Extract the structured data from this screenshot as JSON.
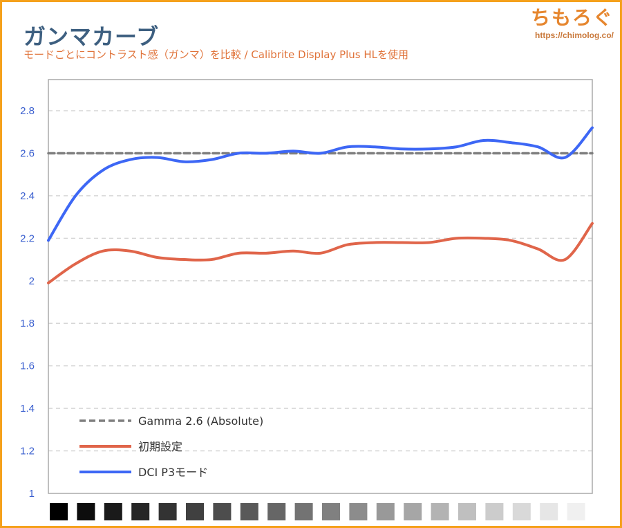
{
  "header": {
    "title": "ガンマカーブ",
    "subtitle": "モードごとにコントラスト感（ガンマ）を比較 / Calibrite Display Plus HLを使用"
  },
  "logo": {
    "main": "ちもろぐ",
    "url": "https://chimolog.co/"
  },
  "chart_data": {
    "type": "line",
    "title": "ガンマカーブ",
    "xlabel": "",
    "ylabel": "",
    "ylim": [
      1,
      2.8
    ],
    "yticks": [
      "1",
      "1.2",
      "1.4",
      "1.6",
      "1.8",
      "2",
      "2.2",
      "2.4",
      "2.6",
      "2.8"
    ],
    "ytick_values": [
      1,
      1.2,
      1.4,
      1.6,
      1.8,
      2,
      2.2,
      2.4,
      2.6,
      2.8
    ],
    "x": [
      0,
      1,
      2,
      3,
      4,
      5,
      6,
      7,
      8,
      9,
      10,
      11,
      12,
      13,
      14,
      15,
      16,
      17,
      18,
      19,
      20
    ],
    "grid": true,
    "legend_placement": "bottom-left",
    "series": [
      {
        "name": "Gamma 2.6 (Absolute)",
        "color": "#7f7f7f",
        "style": "dashed",
        "values": [
          2.6,
          2.6,
          2.6,
          2.6,
          2.6,
          2.6,
          2.6,
          2.6,
          2.6,
          2.6,
          2.6,
          2.6,
          2.6,
          2.6,
          2.6,
          2.6,
          2.6,
          2.6,
          2.6,
          2.6,
          2.6
        ]
      },
      {
        "name": "初期設定",
        "color": "#e0654a",
        "style": "solid",
        "values": [
          1.99,
          2.08,
          2.14,
          2.14,
          2.11,
          2.1,
          2.1,
          2.13,
          2.13,
          2.14,
          2.13,
          2.17,
          2.18,
          2.18,
          2.18,
          2.2,
          2.2,
          2.19,
          2.15,
          2.1,
          2.27
        ]
      },
      {
        "name": "DCI P3モード",
        "color": "#3d67f5",
        "style": "solid",
        "values": [
          2.19,
          2.4,
          2.52,
          2.57,
          2.58,
          2.56,
          2.57,
          2.6,
          2.6,
          2.61,
          2.6,
          2.63,
          2.63,
          2.62,
          2.62,
          2.63,
          2.66,
          2.65,
          2.63,
          2.58,
          2.72
        ]
      }
    ],
    "grayscale_steps": [
      "#000000",
      "#0d0d0d",
      "#1a1a1a",
      "#262626",
      "#333333",
      "#404040",
      "#4d4d4d",
      "#595959",
      "#666666",
      "#737373",
      "#808080",
      "#8c8c8c",
      "#999999",
      "#a6a6a6",
      "#b3b3b3",
      "#bfbfbf",
      "#cccccc",
      "#d9d9d9",
      "#e6e6e6",
      "#f0f0f0"
    ]
  }
}
